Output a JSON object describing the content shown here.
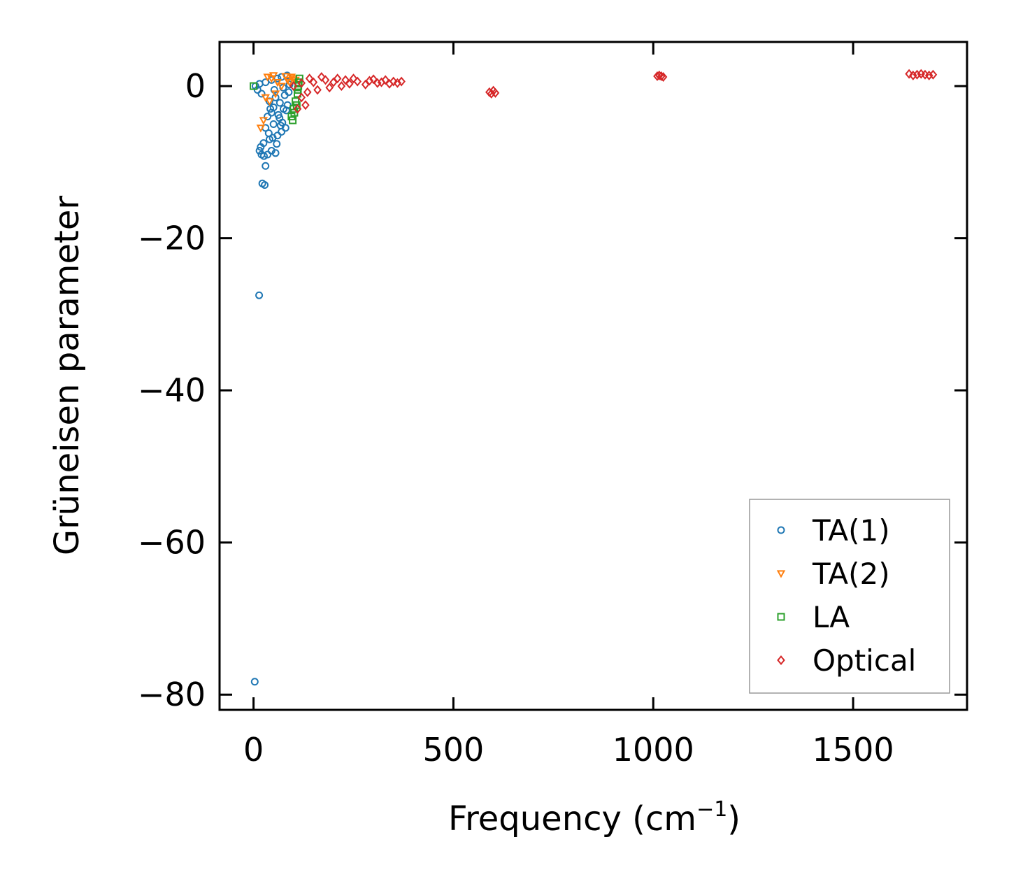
{
  "chart_data": {
    "type": "scatter",
    "xlabel": "Frequency (cm",
    "xlabel_sup": "−1",
    "xlabel_close": ")",
    "ylabel": "Grüneisen parameter",
    "xlim": [
      -85,
      1785
    ],
    "ylim": [
      -82,
      5.8
    ],
    "xticks": [
      0,
      500,
      1000,
      1500
    ],
    "xtick_labels": [
      "0",
      "500",
      "1000",
      "1500"
    ],
    "yticks": [
      0,
      -20,
      -40,
      -60,
      -80
    ],
    "ytick_labels": [
      "0",
      "−20",
      "−40",
      "−60",
      "−80"
    ],
    "legend_position": "lower-right",
    "series": [
      {
        "name": "TA(1)",
        "marker": "circle",
        "color": "#1f77b4",
        "points": [
          [
            3,
            -78.3
          ],
          [
            14,
            -27.5
          ],
          [
            22,
            -12.8
          ],
          [
            28,
            -13
          ],
          [
            30,
            -10.5
          ],
          [
            15,
            -8.5
          ],
          [
            20,
            -9
          ],
          [
            26,
            -9.2
          ],
          [
            35,
            -9
          ],
          [
            45,
            -8.5
          ],
          [
            55,
            -8.8
          ],
          [
            18,
            -8
          ],
          [
            25,
            -7.5
          ],
          [
            40,
            -7
          ],
          [
            60,
            -6.5
          ],
          [
            70,
            -6
          ],
          [
            30,
            -5.5
          ],
          [
            50,
            -5
          ],
          [
            80,
            -5.5
          ],
          [
            35,
            -4
          ],
          [
            45,
            -3.5
          ],
          [
            65,
            -4.2
          ],
          [
            75,
            -3
          ],
          [
            40,
            -2
          ],
          [
            55,
            -1.5
          ],
          [
            85,
            -2.5
          ],
          [
            20,
            -1
          ],
          [
            30,
            0.5
          ],
          [
            60,
            1
          ],
          [
            45,
            0.8
          ],
          [
            70,
            1.2
          ],
          [
            90,
            0.2
          ],
          [
            15,
            0.3
          ],
          [
            10,
            -0.5
          ],
          [
            5,
            0
          ],
          [
            50,
            -2.8
          ],
          [
            62,
            -3.8
          ],
          [
            72,
            -4.8
          ],
          [
            82,
            -3.2
          ],
          [
            38,
            -6.2
          ],
          [
            48,
            -6.8
          ],
          [
            58,
            -7.6
          ],
          [
            68,
            -5.2
          ],
          [
            78,
            -1.2
          ],
          [
            88,
            -0.8
          ],
          [
            42,
            -3
          ],
          [
            52,
            -0.5
          ],
          [
            66,
            -2.2
          ],
          [
            74,
            -0.2
          ],
          [
            84,
            1.4
          ]
        ]
      },
      {
        "name": "TA(2)",
        "marker": "triangle-down",
        "color": "#ff7f0e",
        "points": [
          [
            18,
            -5.5
          ],
          [
            25,
            -4.5
          ],
          [
            40,
            -2
          ],
          [
            55,
            -1
          ],
          [
            70,
            0
          ],
          [
            85,
            0.8
          ],
          [
            95,
            1.2
          ],
          [
            100,
            1
          ],
          [
            30,
            -1.5
          ],
          [
            60,
            0.5
          ],
          [
            80,
            1.3
          ],
          [
            90,
            0.5
          ],
          [
            105,
            0.8
          ],
          [
            45,
            1
          ],
          [
            35,
            1.2
          ],
          [
            50,
            1.4
          ]
        ]
      },
      {
        "name": "LA",
        "marker": "square",
        "color": "#2ca02c",
        "points": [
          [
            0,
            0
          ],
          [
            95,
            -4
          ],
          [
            100,
            -3
          ],
          [
            105,
            -2
          ],
          [
            110,
            -1
          ],
          [
            112,
            0
          ],
          [
            115,
            1
          ],
          [
            108,
            -2.5
          ],
          [
            102,
            -3.5
          ],
          [
            98,
            -4.5
          ],
          [
            113,
            0.5
          ],
          [
            111,
            -0.5
          ]
        ]
      },
      {
        "name": "Optical",
        "marker": "diamond",
        "color": "#d62728",
        "points": [
          [
            100,
            0
          ],
          [
            120,
            -1.5
          ],
          [
            130,
            -2.5
          ],
          [
            110,
            -3
          ],
          [
            150,
            0.5
          ],
          [
            180,
            0.8
          ],
          [
            200,
            0.5
          ],
          [
            230,
            0.8
          ],
          [
            260,
            0.6
          ],
          [
            290,
            0.7
          ],
          [
            320,
            0.5
          ],
          [
            350,
            0.6
          ],
          [
            370,
            0.6
          ],
          [
            140,
            1
          ],
          [
            170,
            1.2
          ],
          [
            210,
            1
          ],
          [
            250,
            1
          ],
          [
            300,
            0.9
          ],
          [
            330,
            0.8
          ],
          [
            160,
            -0.5
          ],
          [
            190,
            -0.2
          ],
          [
            220,
            0
          ],
          [
            280,
            0.2
          ],
          [
            340,
            0.3
          ],
          [
            120,
            0.4
          ],
          [
            135,
            -0.8
          ],
          [
            240,
            0.3
          ],
          [
            310,
            0.4
          ],
          [
            360,
            0.4
          ],
          [
            590,
            -0.8
          ],
          [
            600,
            -0.6
          ],
          [
            605,
            -0.9
          ],
          [
            595,
            -1
          ],
          [
            1010,
            1.3
          ],
          [
            1015,
            1.4
          ],
          [
            1020,
            1.3
          ],
          [
            1025,
            1.2
          ],
          [
            1640,
            1.6
          ],
          [
            1660,
            1.5
          ],
          [
            1680,
            1.5
          ],
          [
            1700,
            1.5
          ],
          [
            1650,
            1.4
          ],
          [
            1670,
            1.6
          ],
          [
            1690,
            1.4
          ]
        ]
      }
    ]
  }
}
